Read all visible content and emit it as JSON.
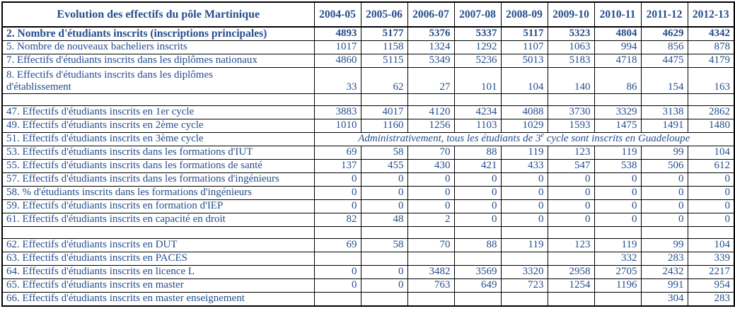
{
  "colors": {
    "text": "#244E8C",
    "border": "#000000",
    "background": "#ffffff"
  },
  "table": {
    "title": "Evolution des effectifs du pôle Martinique",
    "year_headers": [
      "2004-05",
      "2005-06",
      "2006-07",
      "2007-08",
      "2008-09",
      "2009-10",
      "2010-11",
      "2011-12",
      "2012-13"
    ],
    "rows": [
      {
        "label": "2. Nombre d'étudiants inscrits (inscriptions principales)",
        "bold": true,
        "values": [
          "4893",
          "5177",
          "5376",
          "5337",
          "5117",
          "5323",
          "4804",
          "4629",
          "4342"
        ]
      },
      {
        "label": "5. Nombre de nouveaux bacheliers inscrits",
        "values": [
          "1017",
          "1158",
          "1324",
          "1292",
          "1107",
          "1063",
          "994",
          "856",
          "878"
        ]
      },
      {
        "label": "7. Effectifs d'étudiants inscrits dans les diplômes nationaux",
        "values": [
          "4860",
          "5115",
          "5349",
          "5236",
          "5013",
          "5183",
          "4718",
          "4475",
          "4179"
        ]
      },
      {
        "label": "8. Effectifs d'étudiants inscrits dans les diplômes d'établissement",
        "tall": true,
        "wrap": true,
        "values": [
          "33",
          "62",
          "27",
          "101",
          "104",
          "140",
          "86",
          "154",
          "163"
        ]
      },
      {
        "label": "",
        "spacer": true,
        "values": [
          "",
          "",
          "",
          "",
          "",
          "",
          "",
          "",
          ""
        ]
      },
      {
        "label": "47. Effectifs d'étudiants inscrits en 1er cycle",
        "values": [
          "3883",
          "4017",
          "4120",
          "4234",
          "4088",
          "3730",
          "3329",
          "3138",
          "2862"
        ]
      },
      {
        "label": "49. Effectifs d'étudiants inscrits en 2ème cycle",
        "values": [
          "1010",
          "1160",
          "1256",
          "1103",
          "1029",
          "1593",
          "1475",
          "1491",
          "1480"
        ]
      },
      {
        "label": "51. Effectifs d'étudiants inscrits en 3ème cycle",
        "merged_note": {
          "part1": "Administrativement, tous les étudiants de 3",
          "sup": "e",
          "part2": " cycle sont inscrits en Guadeloupe"
        }
      },
      {
        "label": "53. Effectifs d'étudiants inscrits dans les formations d'IUT",
        "values": [
          "69",
          "58",
          "70",
          "88",
          "119",
          "123",
          "119",
          "99",
          "104"
        ]
      },
      {
        "label": "55. Effectifs d'étudiants inscrits dans les formations de santé",
        "values": [
          "137",
          "455",
          "430",
          "421",
          "433",
          "547",
          "538",
          "506",
          "612"
        ]
      },
      {
        "label": "57. Effectifs d'étudiants inscrits dans les formations d'ingénieurs",
        "values": [
          "0",
          "0",
          "0",
          "0",
          "0",
          "0",
          "0",
          "0",
          "0"
        ]
      },
      {
        "label": "58. % d'étudiants inscrits dans  les formations d'ingénieurs",
        "values": [
          "0",
          "0",
          "0",
          "0",
          "0",
          "0",
          "0",
          "0",
          "0"
        ]
      },
      {
        "label": "59. Effectifs d'étudiants inscrits en formation d'IEP",
        "values": [
          "0",
          "0",
          "0",
          "0",
          "0",
          "0",
          "0",
          "0",
          "0"
        ]
      },
      {
        "label": "61. Effectifs d'étudiants inscrits en capacité en droit",
        "values": [
          "82",
          "48",
          "2",
          "0",
          "0",
          "0",
          "0",
          "0",
          "0"
        ]
      },
      {
        "label": "",
        "spacer": true,
        "values": [
          "",
          "",
          "",
          "",
          "",
          "",
          "",
          "",
          ""
        ]
      },
      {
        "label": "62. Effectifs d'étudiants inscrits en DUT",
        "values": [
          "69",
          "58",
          "70",
          "88",
          "119",
          "123",
          "119",
          "99",
          "104"
        ]
      },
      {
        "label": "63. Effectifs d'étudiants inscrits en PACES",
        "values": [
          "",
          "",
          "",
          "",
          "",
          "",
          "332",
          "283",
          "339"
        ]
      },
      {
        "label": "64. Effectifs d'étudiants inscrits en licence L",
        "values": [
          "0",
          "0",
          "3482",
          "3569",
          "3320",
          "2958",
          "2705",
          "2432",
          "2217"
        ]
      },
      {
        "label": "65. Effectifs d'étudiants inscrits en master",
        "values": [
          "0",
          "0",
          "763",
          "649",
          "723",
          "1254",
          "1196",
          "991",
          "954"
        ]
      },
      {
        "label": "66. Effectifs d'étudiants inscrits en master enseignement",
        "values": [
          "",
          "",
          "",
          "",
          "",
          "",
          "",
          "304",
          "283"
        ]
      }
    ]
  }
}
